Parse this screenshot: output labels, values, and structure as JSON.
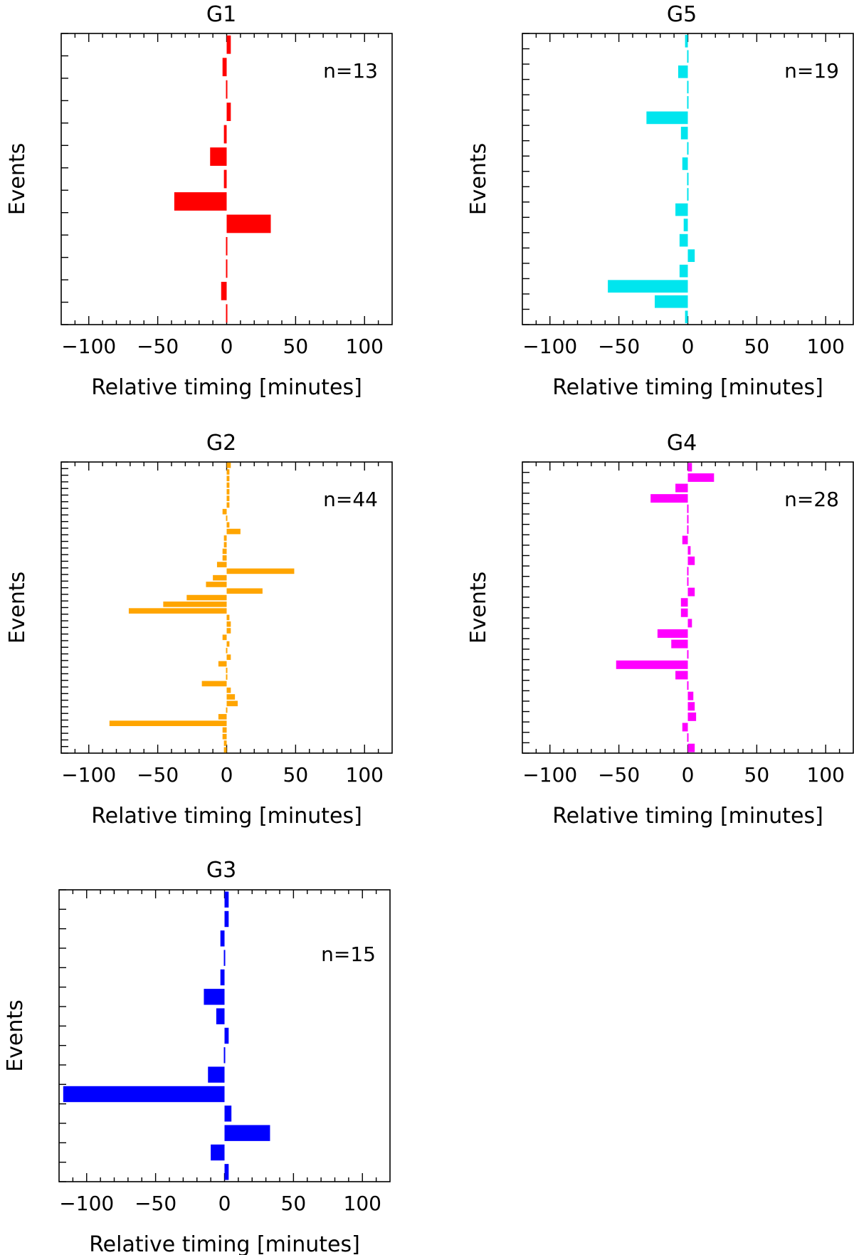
{
  "chart_data": [
    {
      "type": "bar",
      "orientation": "horizontal",
      "title": "G1",
      "annotation": "n=13",
      "xlabel": "Relative timing [minutes]",
      "ylabel": "Events",
      "xlim": [
        -120,
        120
      ],
      "xticks": [
        -100,
        -50,
        0,
        50,
        100
      ],
      "xtick_labels": [
        "−100",
        "−50",
        "0",
        "50",
        "100"
      ],
      "n_events": 13,
      "color": "#ff0000",
      "values": [
        3,
        -3,
        1,
        3,
        -2,
        -12,
        -2,
        -38,
        32,
        1,
        0,
        -4,
        1
      ],
      "grid": false,
      "legend": "none"
    },
    {
      "type": "bar",
      "orientation": "horizontal",
      "title": "G5",
      "annotation": "n=19",
      "xlabel": "Relative timing [minutes]",
      "ylabel": "Events",
      "xlim": [
        -120,
        120
      ],
      "xticks": [
        -100,
        -50,
        0,
        50,
        100
      ],
      "xtick_labels": [
        "−100",
        "−50",
        "0",
        "50",
        "100"
      ],
      "n_events": 19,
      "color": "#00e5ee",
      "values": [
        -2,
        0,
        -7,
        0,
        -1,
        -30,
        -5,
        0,
        -4,
        0,
        -1,
        -9,
        -3,
        -6,
        5,
        -6,
        -58,
        -24,
        -2
      ],
      "grid": false,
      "legend": "none"
    },
    {
      "type": "bar",
      "orientation": "horizontal",
      "title": "G2",
      "annotation": "n=44",
      "xlabel": "Relative timing [minutes]",
      "ylabel": "Events",
      "xlim": [
        -120,
        120
      ],
      "xticks": [
        -100,
        -50,
        0,
        50,
        100
      ],
      "xtick_labels": [
        "−100",
        "−50",
        "0",
        "50",
        "100"
      ],
      "n_events": 44,
      "color": "#ffa500",
      "values": [
        3,
        2,
        2,
        2,
        2,
        2,
        2,
        -3,
        -1,
        2,
        10,
        -2,
        -2,
        -3,
        -3,
        -7,
        49,
        -10,
        -15,
        26,
        -29,
        -46,
        -71,
        2,
        3,
        3,
        -3,
        2,
        -1,
        3,
        -6,
        1,
        0,
        -18,
        3,
        6,
        8,
        1,
        -6,
        -85,
        -3,
        -3,
        -2,
        -2
      ],
      "grid": false,
      "legend": "none"
    },
    {
      "type": "bar",
      "orientation": "horizontal",
      "title": "G4",
      "annotation": "n=28",
      "xlabel": "Relative timing [minutes]",
      "ylabel": "Events",
      "xlim": [
        -120,
        120
      ],
      "xticks": [
        -100,
        -50,
        0,
        50,
        100
      ],
      "xtick_labels": [
        "−100",
        "−50",
        "0",
        "50",
        "100"
      ],
      "n_events": 28,
      "color": "#ff00ff",
      "values": [
        3,
        19,
        -9,
        -27,
        0,
        0,
        0,
        -4,
        2,
        5,
        0,
        0,
        5,
        -5,
        -5,
        3,
        -22,
        -12,
        0,
        -52,
        -9,
        0,
        4,
        5,
        6,
        -4,
        0,
        5
      ],
      "grid": false,
      "legend": "none"
    },
    {
      "type": "bar",
      "orientation": "horizontal",
      "title": "G3",
      "annotation": "n=15",
      "xlabel": "Relative timing [minutes]",
      "ylabel": "Events",
      "xlim": [
        -120,
        120
      ],
      "xticks": [
        -100,
        -50,
        0,
        50,
        100
      ],
      "xtick_labels": [
        "−100",
        "−50",
        "0",
        "50",
        "100"
      ],
      "n_events": 15,
      "color": "#0000ff",
      "values": [
        3,
        3,
        -3,
        1,
        -3,
        -15,
        -6,
        3,
        0,
        -12,
        -117,
        5,
        33,
        -10,
        3
      ],
      "grid": false,
      "legend": "none"
    }
  ]
}
